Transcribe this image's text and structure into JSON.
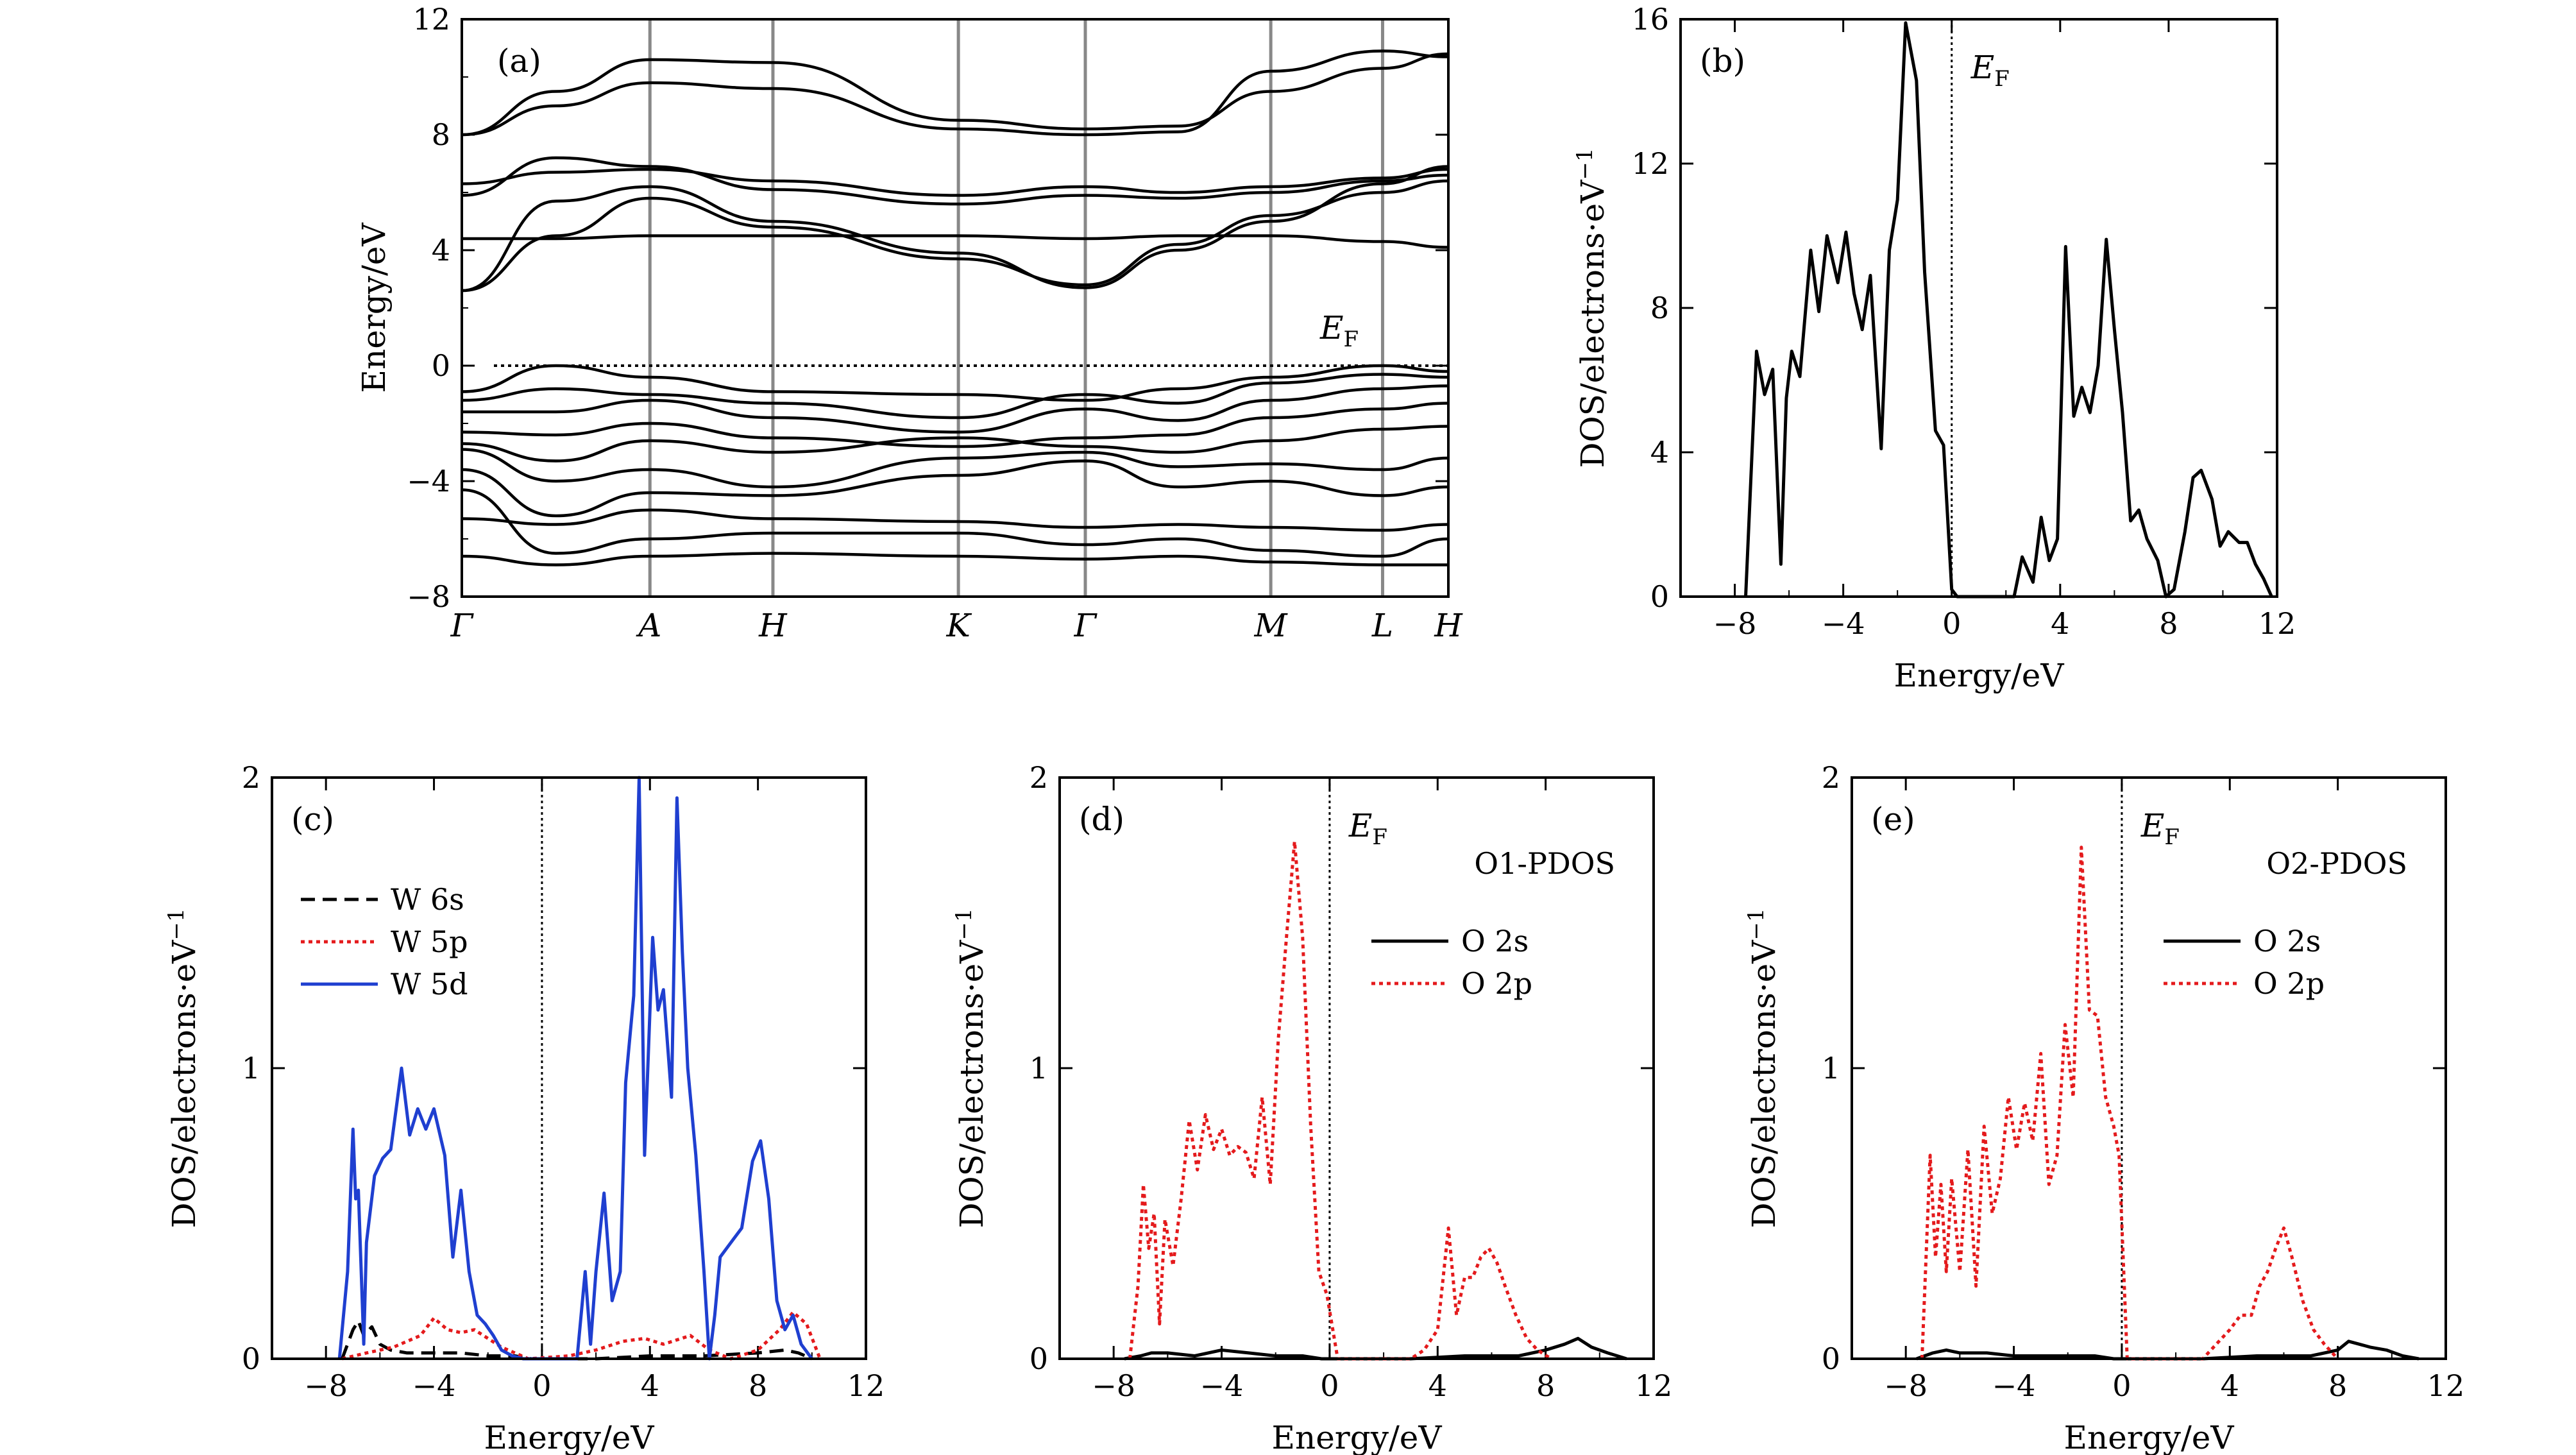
{
  "chart_data": [
    {
      "id": "a",
      "type": "line",
      "panel_label": "(a)",
      "ylabel": "Energy/eV",
      "ylim": [
        -8,
        12
      ],
      "yticks": [
        "−8",
        "−4",
        "0",
        "4",
        "8",
        "12"
      ],
      "kpoints": [
        "Γ",
        "A",
        "H",
        "K",
        "Γ",
        "M",
        "L",
        "H"
      ],
      "fermi_label": "E",
      "fermi_sub": "F",
      "series": [
        {
          "y": [
            8.0,
            9.0,
            9.8,
            9.6,
            8.2,
            8.0,
            8.1,
            10.2,
            10.9,
            10.7
          ]
        },
        {
          "y": [
            8.0,
            9.5,
            10.6,
            10.5,
            8.5,
            8.2,
            8.3,
            9.5,
            10.3,
            10.8
          ]
        },
        {
          "y": [
            6.3,
            6.7,
            6.8,
            6.4,
            5.9,
            6.2,
            6.0,
            6.2,
            6.5,
            6.8
          ]
        },
        {
          "y": [
            5.9,
            7.2,
            6.9,
            6.1,
            5.6,
            5.9,
            5.8,
            6.0,
            6.4,
            6.6
          ]
        },
        {
          "y": [
            2.6,
            5.7,
            6.2,
            5.0,
            3.9,
            2.7,
            4.0,
            5.0,
            6.3,
            6.9
          ]
        },
        {
          "y": [
            2.6,
            4.5,
            5.8,
            4.8,
            3.7,
            2.8,
            4.2,
            5.2,
            6.0,
            6.4
          ]
        },
        {
          "y": [
            4.4,
            4.4,
            4.5,
            4.5,
            4.5,
            4.4,
            4.5,
            4.5,
            4.3,
            4.1
          ]
        },
        {
          "y": [
            -0.9,
            0.0,
            -0.4,
            -0.9,
            -1.0,
            -1.2,
            -0.8,
            -0.4,
            0.0,
            -0.2
          ]
        },
        {
          "y": [
            -1.2,
            -0.8,
            -1.0,
            -1.3,
            -1.8,
            -1.0,
            -1.3,
            -0.6,
            -0.3,
            -0.4
          ]
        },
        {
          "y": [
            -1.6,
            -1.6,
            -1.2,
            -1.8,
            -2.3,
            -1.5,
            -1.9,
            -1.2,
            -0.8,
            -0.7
          ]
        },
        {
          "y": [
            -2.3,
            -2.4,
            -2.0,
            -2.5,
            -2.8,
            -2.5,
            -2.4,
            -1.8,
            -1.5,
            -1.3
          ]
        },
        {
          "y": [
            -2.7,
            -3.3,
            -2.6,
            -3.0,
            -2.5,
            -2.8,
            -3.0,
            -2.6,
            -2.2,
            -2.1
          ]
        },
        {
          "y": [
            -2.9,
            -4.0,
            -3.6,
            -4.2,
            -3.2,
            -3.0,
            -3.5,
            -3.4,
            -3.6,
            -3.2
          ]
        },
        {
          "y": [
            -3.6,
            -5.2,
            -4.4,
            -4.5,
            -3.8,
            -3.3,
            -4.2,
            -4.0,
            -4.5,
            -4.2
          ]
        },
        {
          "y": [
            -5.3,
            -5.5,
            -5.0,
            -5.3,
            -5.4,
            -5.6,
            -5.5,
            -5.6,
            -5.7,
            -5.5
          ]
        },
        {
          "y": [
            -4.3,
            -6.5,
            -6.0,
            -5.8,
            -5.8,
            -6.2,
            -6.0,
            -6.4,
            -6.6,
            -6.0
          ]
        },
        {
          "y": [
            -6.6,
            -6.9,
            -6.6,
            -6.5,
            -6.6,
            -6.7,
            -6.6,
            -6.8,
            -6.9,
            -6.9
          ]
        }
      ]
    },
    {
      "id": "b",
      "type": "line",
      "panel_label": "(b)",
      "xlabel": "Energy/eV",
      "ylabel": "DOS/electrons·eV",
      "ylabel_sup": "−1",
      "xlim": [
        -10,
        12
      ],
      "ylim": [
        0,
        16
      ],
      "xticks": [
        "−8",
        "−4",
        "0",
        "4",
        "8",
        "12"
      ],
      "yticks": [
        "0",
        "4",
        "8",
        "12",
        "16"
      ],
      "fermi_label": "E",
      "fermi_sub": "F",
      "series": [
        {
          "x": [
            -7.6,
            -7.2,
            -6.9,
            -6.6,
            -6.3,
            -6.1,
            -5.9,
            -5.6,
            -5.2,
            -4.9,
            -4.6,
            -4.2,
            -3.9,
            -3.6,
            -3.3,
            -3.0,
            -2.6,
            -2.3,
            -2.0,
            -1.7,
            -1.3,
            -1.0,
            -0.6,
            -0.3,
            0.0,
            0.2,
            2.3,
            2.6,
            3.0,
            3.3,
            3.6,
            3.9,
            4.2,
            4.5,
            4.8,
            5.1,
            5.4,
            5.7,
            6.0,
            6.3,
            6.6,
            6.9,
            7.2,
            7.6,
            7.9,
            8.2,
            8.6,
            8.9,
            9.2,
            9.6,
            9.9,
            10.2,
            10.6,
            10.9,
            11.2,
            11.5,
            11.8
          ],
          "y": [
            0.0,
            6.8,
            5.6,
            6.3,
            0.9,
            5.5,
            6.8,
            6.1,
            9.6,
            7.9,
            10.0,
            8.7,
            10.1,
            8.4,
            7.4,
            8.9,
            4.1,
            9.6,
            11.0,
            15.9,
            14.3,
            9.0,
            4.6,
            4.2,
            0.2,
            0.0,
            0.0,
            1.1,
            0.4,
            2.2,
            1.0,
            1.6,
            9.7,
            5.0,
            5.8,
            5.1,
            6.4,
            9.9,
            7.4,
            5.1,
            2.1,
            2.4,
            1.6,
            1.0,
            0.0,
            0.2,
            1.8,
            3.3,
            3.5,
            2.7,
            1.4,
            1.8,
            1.5,
            1.5,
            0.9,
            0.5,
            0.0
          ]
        }
      ]
    },
    {
      "id": "c",
      "type": "line",
      "panel_label": "(c)",
      "xlabel": "Energy/eV",
      "ylabel": "DOS/electrons·eV",
      "ylabel_sup": "−1",
      "xlim": [
        -10,
        12
      ],
      "ylim": [
        0,
        2
      ],
      "xticks": [
        "−8",
        "−4",
        "0",
        "4",
        "8",
        "12"
      ],
      "yticks": [
        "0",
        "1",
        "2"
      ],
      "legend": "upper-left",
      "series": [
        {
          "name": "W 6s",
          "color": "#000000",
          "dash": "dashed",
          "x": [
            -7.4,
            -7.0,
            -6.8,
            -6.6,
            -6.3,
            -6.0,
            -5.6,
            -5.0,
            -4.0,
            -3.0,
            -2.0,
            -1.0,
            -0.4,
            2.0,
            4.0,
            6.0,
            8.0,
            9.0,
            9.5,
            10.0
          ],
          "y": [
            0.0,
            0.1,
            0.13,
            0.08,
            0.11,
            0.05,
            0.03,
            0.02,
            0.02,
            0.02,
            0.01,
            0.01,
            0.0,
            0.0,
            0.01,
            0.01,
            0.02,
            0.03,
            0.02,
            0.0
          ]
        },
        {
          "name": "W 5p",
          "color": "#e41a1c",
          "dash": "dotted",
          "x": [
            -7.4,
            -6.5,
            -5.5,
            -4.5,
            -4.0,
            -3.5,
            -3.0,
            -2.5,
            -2.0,
            -1.5,
            -1.0,
            -0.5,
            1.0,
            2.0,
            3.0,
            3.8,
            4.5,
            5.5,
            6.2,
            7.0,
            8.0,
            8.8,
            9.3,
            9.8,
            10.3
          ],
          "y": [
            0.0,
            0.02,
            0.04,
            0.08,
            0.14,
            0.1,
            0.09,
            0.1,
            0.07,
            0.04,
            0.02,
            0.0,
            0.01,
            0.03,
            0.06,
            0.07,
            0.05,
            0.08,
            0.03,
            0.0,
            0.03,
            0.1,
            0.16,
            0.12,
            0.0
          ]
        },
        {
          "name": "W 5d",
          "color": "#1f3fd0",
          "dash": "solid",
          "x": [
            -7.5,
            -7.2,
            -7.0,
            -6.9,
            -6.8,
            -6.6,
            -6.5,
            -6.2,
            -5.9,
            -5.6,
            -5.2,
            -4.9,
            -4.6,
            -4.3,
            -4.0,
            -3.6,
            -3.3,
            -3.0,
            -2.7,
            -2.4,
            -2.1,
            -1.8,
            -1.5,
            -1.1,
            -0.7,
            1.3,
            1.6,
            1.8,
            2.0,
            2.3,
            2.6,
            2.9,
            3.1,
            3.4,
            3.6,
            3.8,
            4.1,
            4.3,
            4.5,
            4.8,
            5.0,
            5.2,
            5.4,
            5.7,
            6.0,
            6.2,
            6.4,
            6.6,
            7.0,
            7.4,
            7.8,
            8.1,
            8.4,
            8.7,
            9.0,
            9.3,
            9.6,
            10.0
          ],
          "y": [
            0.0,
            0.3,
            0.79,
            0.55,
            0.58,
            0.05,
            0.4,
            0.63,
            0.69,
            0.72,
            1.0,
            0.77,
            0.86,
            0.79,
            0.86,
            0.7,
            0.35,
            0.58,
            0.3,
            0.15,
            0.12,
            0.08,
            0.03,
            0.01,
            0.0,
            0.0,
            0.3,
            0.05,
            0.3,
            0.57,
            0.2,
            0.3,
            0.95,
            1.25,
            2.0,
            0.7,
            1.45,
            1.2,
            1.27,
            0.9,
            1.93,
            1.4,
            1.0,
            0.7,
            0.3,
            0.0,
            0.15,
            0.35,
            0.4,
            0.45,
            0.68,
            0.75,
            0.55,
            0.2,
            0.1,
            0.15,
            0.05,
            0.0
          ]
        }
      ]
    },
    {
      "id": "d",
      "type": "line",
      "panel_label": "(d)",
      "title": "O1-PDOS",
      "xlabel": "Energy/eV",
      "ylabel": "DOS/electrons·eV",
      "ylabel_sup": "−1",
      "xlim": [
        -10,
        12
      ],
      "ylim": [
        0,
        2
      ],
      "xticks": [
        "−8",
        "−4",
        "0",
        "4",
        "8",
        "12"
      ],
      "yticks": [
        "0",
        "1",
        "2"
      ],
      "fermi_label": "E",
      "fermi_sub": "F",
      "legend": "right",
      "series": [
        {
          "name": "O 2s",
          "color": "#000000",
          "dash": "solid",
          "x": [
            -7.6,
            -7.0,
            -6.6,
            -6.0,
            -5.0,
            -4.0,
            -3.0,
            -2.0,
            -1.0,
            -0.3,
            1.0,
            3.0,
            5.0,
            7.0,
            8.0,
            8.7,
            9.2,
            9.7,
            10.3,
            11.0
          ],
          "y": [
            0.0,
            0.01,
            0.02,
            0.02,
            0.01,
            0.03,
            0.02,
            0.01,
            0.01,
            0.0,
            0.0,
            0.0,
            0.01,
            0.01,
            0.03,
            0.05,
            0.07,
            0.04,
            0.02,
            0.0
          ]
        },
        {
          "name": "O 2p",
          "color": "#e41a1c",
          "dash": "dotted",
          "x": [
            -7.4,
            -7.1,
            -6.9,
            -6.7,
            -6.5,
            -6.3,
            -6.1,
            -5.8,
            -5.5,
            -5.2,
            -4.9,
            -4.6,
            -4.3,
            -4.0,
            -3.7,
            -3.4,
            -3.1,
            -2.8,
            -2.5,
            -2.2,
            -1.9,
            -1.6,
            -1.3,
            -1.0,
            -0.7,
            -0.4,
            -0.1,
            0.3,
            3.0,
            3.5,
            4.0,
            4.4,
            4.7,
            5.0,
            5.3,
            5.6,
            5.9,
            6.2,
            6.5,
            6.9,
            7.3,
            7.7,
            8.2
          ],
          "y": [
            0.0,
            0.25,
            0.6,
            0.38,
            0.5,
            0.12,
            0.48,
            0.32,
            0.55,
            0.82,
            0.65,
            0.84,
            0.72,
            0.79,
            0.7,
            0.73,
            0.71,
            0.62,
            0.9,
            0.6,
            1.1,
            1.45,
            1.78,
            1.45,
            0.8,
            0.3,
            0.22,
            0.0,
            0.0,
            0.03,
            0.1,
            0.45,
            0.15,
            0.28,
            0.28,
            0.35,
            0.38,
            0.33,
            0.25,
            0.15,
            0.07,
            0.03,
            0.0
          ]
        }
      ]
    },
    {
      "id": "e",
      "type": "line",
      "panel_label": "(e)",
      "title": "O2-PDOS",
      "xlabel": "Energy/eV",
      "ylabel": "DOS/electrons·eV",
      "ylabel_sup": "−1",
      "xlim": [
        -10,
        12
      ],
      "ylim": [
        0,
        2
      ],
      "xticks": [
        "−8",
        "−4",
        "0",
        "4",
        "8",
        "12"
      ],
      "yticks": [
        "0",
        "1",
        "2"
      ],
      "fermi_label": "E",
      "fermi_sub": "F",
      "legend": "right",
      "series": [
        {
          "name": "O 2s",
          "color": "#000000",
          "dash": "solid",
          "x": [
            -7.6,
            -7.0,
            -6.5,
            -6.0,
            -5.0,
            -4.0,
            -3.0,
            -2.0,
            -1.0,
            -0.3,
            1.0,
            3.0,
            5.0,
            7.0,
            8.0,
            8.4,
            8.8,
            9.2,
            9.8,
            10.4,
            11.0
          ],
          "y": [
            0.0,
            0.02,
            0.03,
            0.02,
            0.02,
            0.01,
            0.01,
            0.01,
            0.01,
            0.0,
            0.0,
            0.0,
            0.01,
            0.01,
            0.03,
            0.06,
            0.05,
            0.04,
            0.03,
            0.01,
            0.0
          ]
        },
        {
          "name": "O 2p",
          "color": "#e41a1c",
          "dash": "dotted",
          "x": [
            -7.4,
            -7.1,
            -6.9,
            -6.7,
            -6.5,
            -6.3,
            -6.0,
            -5.7,
            -5.4,
            -5.1,
            -4.8,
            -4.5,
            -4.2,
            -3.9,
            -3.6,
            -3.3,
            -3.0,
            -2.7,
            -2.4,
            -2.1,
            -1.8,
            -1.5,
            -1.2,
            -0.9,
            -0.6,
            -0.3,
            -0.1,
            0.2,
            3.0,
            3.5,
            4.0,
            4.4,
            4.8,
            5.1,
            5.4,
            5.7,
            6.0,
            6.3,
            6.7,
            7.1,
            7.5,
            8.0
          ],
          "y": [
            0.0,
            0.7,
            0.35,
            0.6,
            0.3,
            0.62,
            0.3,
            0.72,
            0.25,
            0.8,
            0.5,
            0.62,
            0.9,
            0.72,
            0.88,
            0.75,
            1.05,
            0.6,
            0.7,
            1.15,
            0.9,
            1.76,
            1.2,
            1.18,
            0.9,
            0.8,
            0.7,
            0.0,
            0.0,
            0.05,
            0.1,
            0.15,
            0.15,
            0.25,
            0.3,
            0.38,
            0.45,
            0.35,
            0.2,
            0.1,
            0.05,
            0.0
          ]
        }
      ]
    }
  ]
}
